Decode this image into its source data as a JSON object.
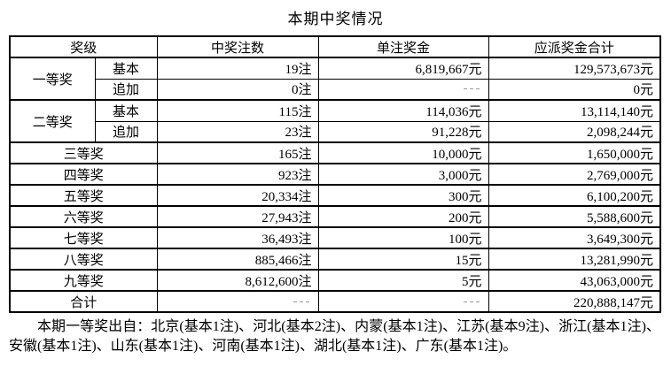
{
  "title": "本期中奖情况",
  "table": {
    "headers": [
      "奖级",
      "中奖注数",
      "单注奖金",
      "应派奖金合计"
    ],
    "row_groups": [
      {
        "level": "一等奖",
        "entries": [
          {
            "sub": "基本",
            "count": "19注",
            "single": "6,819,667元",
            "total": "129,573,673元"
          },
          {
            "sub": "追加",
            "count": "0注",
            "single": "---",
            "total": "0元"
          }
        ]
      },
      {
        "level": "二等奖",
        "entries": [
          {
            "sub": "基本",
            "count": "115注",
            "single": "114,036元",
            "total": "13,114,140元"
          },
          {
            "sub": "追加",
            "count": "23注",
            "single": "91,228元",
            "total": "2,098,244元"
          }
        ]
      },
      {
        "level": "三等奖",
        "entries": [
          {
            "count": "165注",
            "single": "10,000元",
            "total": "1,650,000元"
          }
        ]
      },
      {
        "level": "四等奖",
        "entries": [
          {
            "count": "923注",
            "single": "3,000元",
            "total": "2,769,000元"
          }
        ]
      },
      {
        "level": "五等奖",
        "entries": [
          {
            "count": "20,334注",
            "single": "300元",
            "total": "6,100,200元"
          }
        ]
      },
      {
        "level": "六等奖",
        "entries": [
          {
            "count": "27,943注",
            "single": "200元",
            "total": "5,588,600元"
          }
        ]
      },
      {
        "level": "七等奖",
        "entries": [
          {
            "count": "36,493注",
            "single": "100元",
            "total": "3,649,300元"
          }
        ]
      },
      {
        "level": "八等奖",
        "entries": [
          {
            "count": "885,466注",
            "single": "15元",
            "total": "13,281,990元"
          }
        ]
      },
      {
        "level": "九等奖",
        "entries": [
          {
            "count": "8,612,600注",
            "single": "5元",
            "total": "43,063,000元"
          }
        ]
      },
      {
        "level": "合计",
        "entries": [
          {
            "count": "---",
            "single": "---",
            "total": "220,888,147元"
          }
        ]
      }
    ]
  },
  "footer_note": "本期一等奖出自：北京(基本1注)、河北(基本2注)、内蒙(基本1注)、江苏(基本9注)、浙江(基本1注)、安徽(基本1注)、山东(基本1注)、河南(基本1注)、湖北(基本1注)、广东(基本1注)。",
  "colors": {
    "text": "#000000",
    "border": "#000000",
    "placeholder_dash": "#9a9a9a",
    "background": "#ffffff"
  }
}
